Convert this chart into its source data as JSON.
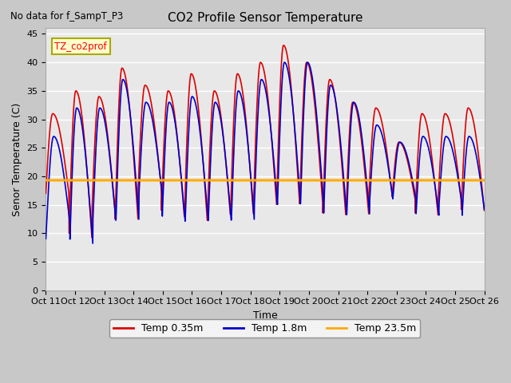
{
  "title": "CO2 Profile Sensor Temperature",
  "subtitle": "No data for f_SampT_P3",
  "ylabel": "Senor Temperature (C)",
  "xlabel": "Time",
  "ylim": [
    0,
    46
  ],
  "yticks": [
    0,
    5,
    10,
    15,
    20,
    25,
    30,
    35,
    40,
    45
  ],
  "xtick_labels": [
    "Oct 11",
    "Oct 12",
    "Oct 13",
    "Oct 14",
    "Oct 15",
    "Oct 16",
    "Oct 17",
    "Oct 18",
    "Oct 19",
    "Oct 20",
    "Oct 21",
    "Oct 22",
    "Oct 23",
    "Oct 24",
    "Oct 25",
    "Oct 26"
  ],
  "background_color": "#c8c8c8",
  "plot_bg_color": "#e8e8e8",
  "grid_color": "#ffffff",
  "legend_box_color": "#ffffcc",
  "legend_box_edge": "#aaaa00",
  "constant_temp": 19.3,
  "colors": {
    "red_line": "#dd0000",
    "blue_line": "#0000cc",
    "orange_line": "#ffaa00"
  },
  "legend_labels": [
    "Temp 0.35m",
    "Temp 1.8m",
    "Temp 23.5m"
  ],
  "annotation_label": "TZ_co2prof",
  "red_peaks": [
    31,
    35,
    34,
    39,
    36,
    35,
    38,
    35,
    38,
    40,
    43,
    40,
    37,
    33,
    32,
    26,
    31,
    31,
    32,
    33
  ],
  "red_troughs": [
    17,
    9,
    14,
    12,
    18,
    13,
    12,
    13,
    13,
    15,
    15,
    15,
    13,
    13,
    17,
    16,
    13,
    16,
    14,
    15
  ],
  "blue_peaks": [
    27,
    32,
    32,
    37,
    33,
    33,
    34,
    33,
    35,
    37,
    40,
    40,
    36,
    33,
    29,
    26,
    27,
    27,
    27,
    27
  ],
  "blue_troughs": [
    12,
    8,
    12,
    12,
    17,
    12,
    12,
    12,
    12,
    15,
    15,
    15,
    13,
    13,
    16,
    16,
    13,
    15,
    13,
    14
  ],
  "n_cycles": 19,
  "n_points": 2000
}
